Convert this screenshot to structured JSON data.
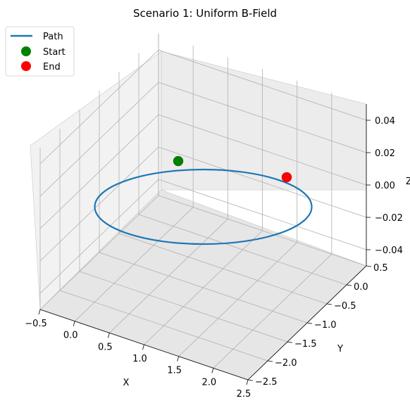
{
  "chart_data": {
    "type": "line3d",
    "title": "Scenario 1: Uniform B-Field",
    "xlabel": "X",
    "ylabel": "Y",
    "zlabel": "Z",
    "x_ticks": [
      "−0.5",
      "0.0",
      "0.5",
      "1.0",
      "1.5",
      "2.0",
      "2.5"
    ],
    "y_ticks": [
      "−2.5",
      "−2.0",
      "−1.5",
      "−1.0",
      "−0.5",
      "0.0",
      "0.5"
    ],
    "z_ticks": [
      "−0.04",
      "−0.02",
      "0.00",
      "0.02",
      "0.04"
    ],
    "xlim": [
      -0.5,
      2.5
    ],
    "ylim": [
      -2.5,
      0.5
    ],
    "zlim": [
      -0.05,
      0.05
    ],
    "grid": true,
    "legend_position": "top-left",
    "series": [
      {
        "name": "Path",
        "kind": "line",
        "color": "#1f77b4",
        "path": {
          "shape": "circle",
          "center_x": 1.0,
          "center_y": -1.0,
          "radius": 1.0,
          "z": 0.0
        }
      },
      {
        "name": "Start",
        "kind": "marker",
        "color": "#008000",
        "point": {
          "x": 0.0,
          "y": -1.0,
          "z": 0.0
        }
      },
      {
        "name": "End",
        "kind": "marker",
        "color": "#ff0000",
        "point": {
          "x": 1.62,
          "y": -0.22,
          "z": 0.0
        }
      }
    ]
  }
}
